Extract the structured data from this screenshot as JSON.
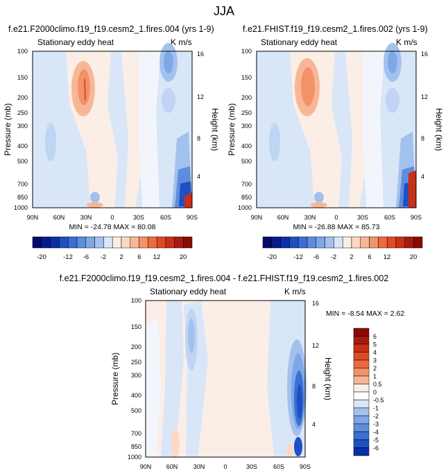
{
  "page_title": "JJA",
  "colors": {
    "neg": [
      "#f2f6fc",
      "#d9e6f8",
      "#c0d5f4",
      "#a3c1ee",
      "#7fa7e6",
      "#5e8ddd",
      "#3b6fd3",
      "#1f4fc4",
      "#0b2fa8",
      "#061c8a",
      "#020c6e"
    ],
    "zero": "#ffffff",
    "pos": [
      "#fbeee6",
      "#fbd9c4",
      "#f7b796",
      "#f29269",
      "#ec6a3f",
      "#e04a23",
      "#c93017",
      "#a81a10",
      "#8b0a06"
    ]
  },
  "chart_data": [
    {
      "type": "contour",
      "id": "top-left",
      "title": "f.e21.F2000climo.f19_f19.cesm2_1.fires.004 (yrs 1-9)",
      "left_string": "Stationary eddy heat",
      "right_string": "K m/s",
      "ylabel": "Pressure (mb)",
      "ylabel_right": "Height (km)",
      "xticks": [
        "90N",
        "60N",
        "30N",
        "0",
        "30S",
        "60S",
        "90S"
      ],
      "yticks": [
        1000,
        850,
        700,
        500,
        400,
        300,
        250,
        200,
        150,
        100
      ],
      "height_ticks": [
        4,
        8,
        12,
        16
      ],
      "min_max": "MIN = -24.78   MAX =  80.08",
      "colorbar": {
        "orientation": "horizontal",
        "labels": [
          "-20",
          "-12",
          "-6",
          "-2",
          "2",
          "6",
          "12",
          "20"
        ],
        "levels": [
          -24,
          -20,
          -16,
          -12,
          -10,
          -8,
          -6,
          -4,
          -2,
          0,
          2,
          4,
          6,
          8,
          10,
          12,
          16,
          20,
          24
        ]
      },
      "features": [
        {
          "lat": 30,
          "p": 180,
          "v": 6
        },
        {
          "lat": 30,
          "p": 150,
          "v": 9
        },
        {
          "lat": -68,
          "p": 120,
          "v": -6
        },
        {
          "lat": -68,
          "p": 100,
          "v": -4
        },
        {
          "lat": -80,
          "p": 800,
          "v": -10
        },
        {
          "lat": -85,
          "p": 950,
          "v": 12
        },
        {
          "lat": 75,
          "p": 400,
          "v": -2
        }
      ]
    },
    {
      "type": "contour",
      "id": "top-right",
      "title": "f.e21.FHIST.f19_f19.cesm2_1.fires.002 (yrs 1-9)",
      "left_string": "Stationary eddy heat",
      "right_string": "K m/s",
      "ylabel": "Pressure (mb)",
      "ylabel_right": "Height (km)",
      "xticks": [
        "90N",
        "60N",
        "30N",
        "0",
        "30S",
        "60S",
        "90S"
      ],
      "yticks": [
        1000,
        850,
        700,
        500,
        400,
        300,
        250,
        200,
        150,
        100
      ],
      "height_ticks": [
        4,
        8,
        12,
        16
      ],
      "min_max": "MIN = -26.88   MAX =  85.73",
      "colorbar": {
        "orientation": "horizontal",
        "labels": [
          "-20",
          "-12",
          "-6",
          "-2",
          "2",
          "6",
          "12",
          "20"
        ],
        "levels": [
          -24,
          -20,
          -16,
          -12,
          -10,
          -8,
          -6,
          -4,
          -2,
          0,
          2,
          4,
          6,
          8,
          10,
          12,
          16,
          20,
          24
        ]
      },
      "features": [
        {
          "lat": 30,
          "p": 180,
          "v": 6
        },
        {
          "lat": 30,
          "p": 150,
          "v": 9
        },
        {
          "lat": -68,
          "p": 120,
          "v": -6
        },
        {
          "lat": -68,
          "p": 100,
          "v": -4
        },
        {
          "lat": -80,
          "p": 800,
          "v": -10
        },
        {
          "lat": -85,
          "p": 950,
          "v": 12
        },
        {
          "lat": 75,
          "p": 400,
          "v": -2
        }
      ]
    },
    {
      "type": "contour",
      "id": "bottom-diff",
      "title": "f.e21.F2000climo.f19_f19.cesm2_1.fires.004 - f.e21.FHIST.f19_f19.cesm2_1.fires.002",
      "left_string": "Stationary eddy heat",
      "right_string": "K m/s",
      "ylabel": "Pressure (mb)",
      "ylabel_right": "Height (km)",
      "xticks": [
        "90N",
        "60N",
        "30N",
        "0",
        "30S",
        "60S",
        "90S"
      ],
      "yticks": [
        1000,
        850,
        700,
        500,
        400,
        300,
        250,
        200,
        150,
        100
      ],
      "height_ticks": [
        4,
        8,
        12,
        16
      ],
      "min_max": "MIN =  -8.54   MAX =   2.62",
      "colorbar": {
        "orientation": "vertical",
        "labels": [
          "6",
          "5",
          "4",
          "3",
          "2",
          "1",
          "0.5",
          "0",
          "-0.5",
          "-1",
          "-2",
          "-3",
          "-4",
          "-5",
          "-6"
        ],
        "levels": [
          6,
          5,
          4,
          3,
          2,
          1,
          0.5,
          0,
          -0.5,
          -1,
          -2,
          -3,
          -4,
          -5,
          -6
        ]
      },
      "features": [
        {
          "lat": 40,
          "p": 220,
          "v": -1.5
        },
        {
          "lat": -88,
          "p": 450,
          "v": -3.5
        },
        {
          "lat": -88,
          "p": 850,
          "v": -4.5
        },
        {
          "lat": 55,
          "p": 900,
          "v": 0.6
        }
      ]
    }
  ]
}
